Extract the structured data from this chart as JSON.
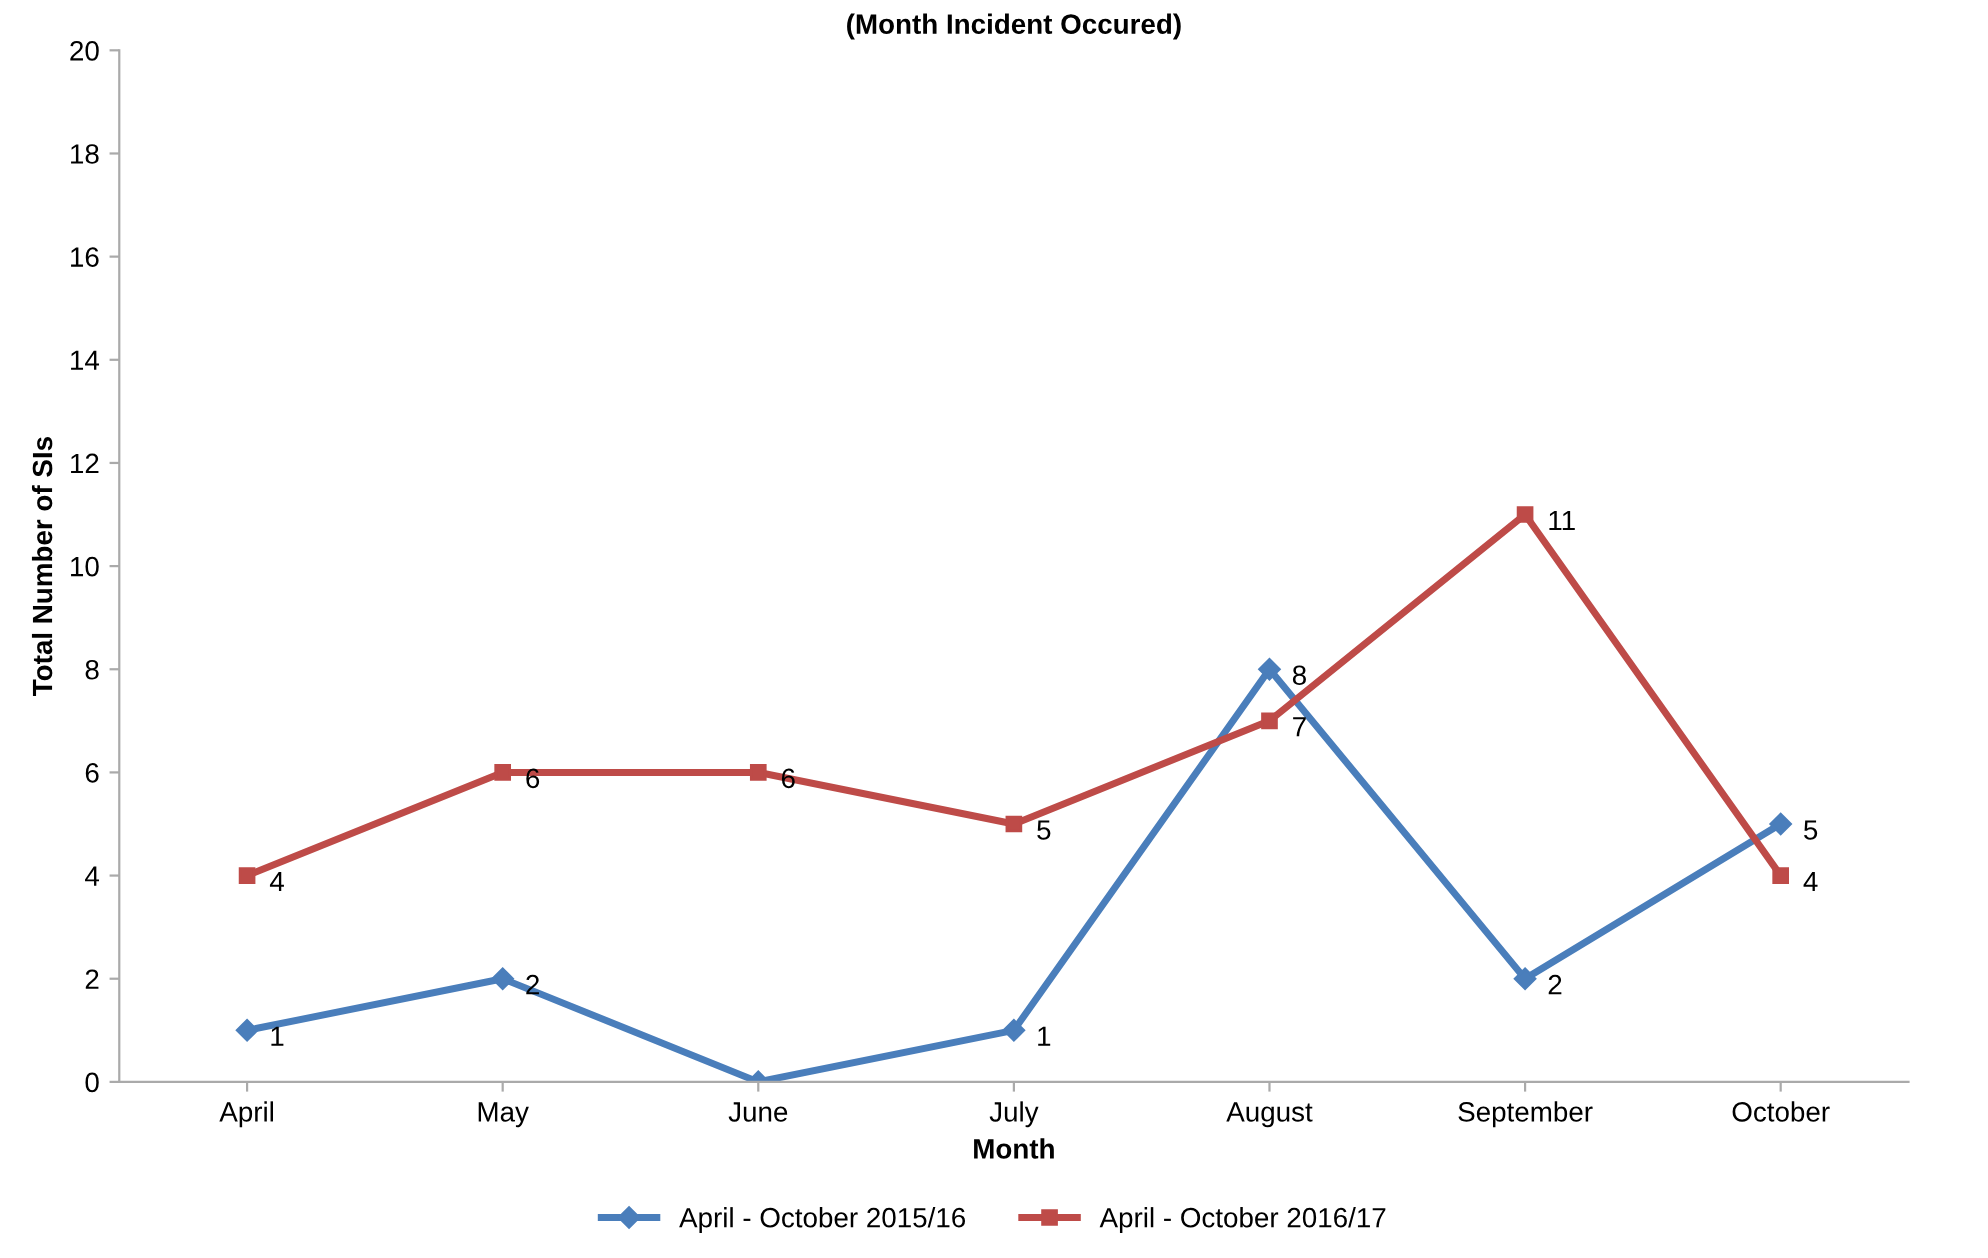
{
  "chart_data": {
    "type": "line",
    "title": "(Month Incident Occured)",
    "xlabel": "Month",
    "ylabel": "Total Number of SIs",
    "categories": [
      "April",
      "May",
      "June",
      "July",
      "August",
      "September",
      "October"
    ],
    "series": [
      {
        "name": "April - October 2015/16",
        "color": "#4a7ebb",
        "values": [
          1,
          2,
          0,
          1,
          8,
          2,
          5
        ],
        "value_labels": [
          "1",
          "2",
          null,
          "1",
          "8",
          "2",
          "5"
        ],
        "marker": "diamond"
      },
      {
        "name": "April - October 2016/17",
        "color": "#be4b48",
        "values": [
          4,
          6,
          6,
          5,
          7,
          11,
          4
        ],
        "marker": "square"
      }
    ],
    "ylim": [
      0,
      20
    ],
    "yticks": [
      0,
      2,
      4,
      6,
      8,
      10,
      12,
      14,
      16,
      18,
      20
    ],
    "grid": false,
    "legend": "bottom",
    "data_labels": true,
    "line_style": "solid"
  }
}
